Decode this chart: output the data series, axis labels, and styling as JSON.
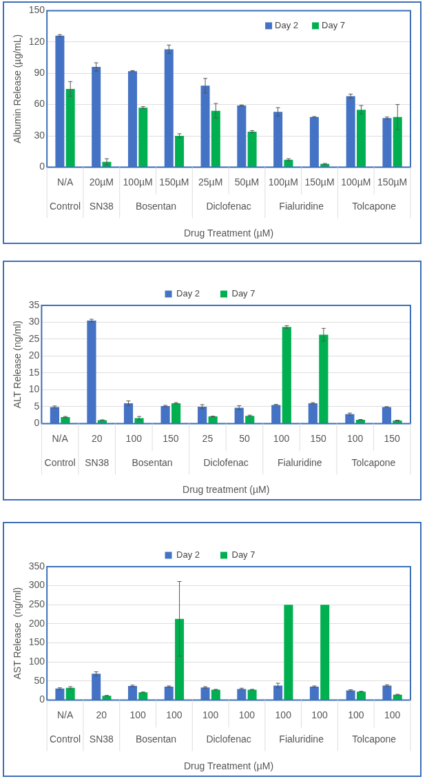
{
  "chart_data": [
    {
      "type": "bar",
      "ylabel": "Albumin Release (µg/mL)",
      "xlabel": "Drug Treatment (µM)",
      "categories": [
        "N/A",
        "20µM",
        "100µM",
        "150µM",
        "25µM",
        "50µM",
        "100µM",
        "150µM",
        "100µM",
        "150µM"
      ],
      "annotations": [
        "Control",
        "SN38",
        "Bosentan",
        "Diclofenac",
        "Fialuridine",
        "Tolcapone"
      ],
      "series": [
        {
          "name": "Day 2",
          "color": "#4472c4",
          "values": [
            126,
            96,
            92,
            113,
            78,
            59,
            53,
            48,
            68,
            47
          ],
          "errors": [
            1,
            4,
            0.5,
            4,
            7,
            0.5,
            4,
            0.5,
            2,
            1
          ]
        },
        {
          "name": "Day 7",
          "color": "#00b050",
          "values": [
            75,
            5,
            57,
            30,
            54,
            34,
            7,
            3,
            55,
            48
          ],
          "errors": [
            7,
            3,
            1,
            2,
            7,
            1,
            1,
            0.5,
            4,
            12
          ]
        }
      ],
      "ylim": [
        0,
        150
      ],
      "yticks": [
        0,
        30,
        60,
        90,
        120,
        150
      ],
      "grid": "y",
      "legend": "top right"
    },
    {
      "type": "bar",
      "ylabel": "ALT Release (ng/ml)",
      "xlabel": "Drug treatment (µM)",
      "categories": [
        "N/A",
        "20",
        "100",
        "150",
        "25",
        "50",
        "100",
        "150",
        "100",
        "150"
      ],
      "annotations": [
        "Control",
        "SN38",
        "Bosentan",
        "Diclofenac",
        "Fialuridine",
        "Tolcapone"
      ],
      "series": [
        {
          "name": "Day 2",
          "color": "#4472c4",
          "values": [
            4.9,
            30.5,
            6.0,
            5.2,
            5.0,
            4.7,
            5.5,
            6.0,
            2.8,
            4.9
          ],
          "errors": [
            0.3,
            0.4,
            0.7,
            0.2,
            0.6,
            0.6,
            0.2,
            0.2,
            0.3,
            0.1
          ]
        },
        {
          "name": "Day 7",
          "color": "#00b050",
          "values": [
            1.9,
            1.0,
            1.6,
            6.0,
            2.1,
            2.3,
            28.6,
            26.3,
            1.1,
            0.9
          ],
          "errors": [
            0.2,
            0.1,
            0.5,
            0.2,
            0.1,
            0.2,
            0.4,
            1.9,
            0.1,
            0.1
          ]
        }
      ],
      "ylim": [
        0,
        35
      ],
      "yticks": [
        0,
        5,
        10,
        15,
        20,
        25,
        30,
        35
      ],
      "grid": "y",
      "legend": "top"
    },
    {
      "type": "bar",
      "ylabel": "AST Release  (ng/ml)",
      "xlabel": "Drug Treatment (µM)",
      "categories": [
        "N/A",
        "20",
        "100",
        "100",
        "100",
        "100",
        "100",
        "100",
        "100",
        "100"
      ],
      "annotations": [
        "Control",
        "SN38",
        "Bosentan",
        "Diclofenac",
        "Fialuridine",
        "Tolcapone"
      ],
      "series": [
        {
          "name": "Day 2",
          "color": "#4472c4",
          "values": [
            30,
            69,
            37,
            35,
            33,
            29,
            38,
            35,
            25,
            38
          ],
          "errors": [
            2,
            5,
            2,
            2,
            2,
            2,
            6,
            2,
            2,
            2
          ]
        },
        {
          "name": "Day 7",
          "color": "#00b050",
          "values": [
            32,
            11,
            20,
            213,
            27,
            27,
            250,
            250,
            22,
            14
          ],
          "errors": [
            3,
            1,
            1,
            98,
            1,
            1,
            null,
            null,
            1,
            1
          ]
        }
      ],
      "ylim": [
        0,
        350
      ],
      "yticks": [
        0,
        50,
        100,
        150,
        200,
        250,
        300,
        350
      ],
      "grid": "y",
      "legend": "top"
    }
  ]
}
